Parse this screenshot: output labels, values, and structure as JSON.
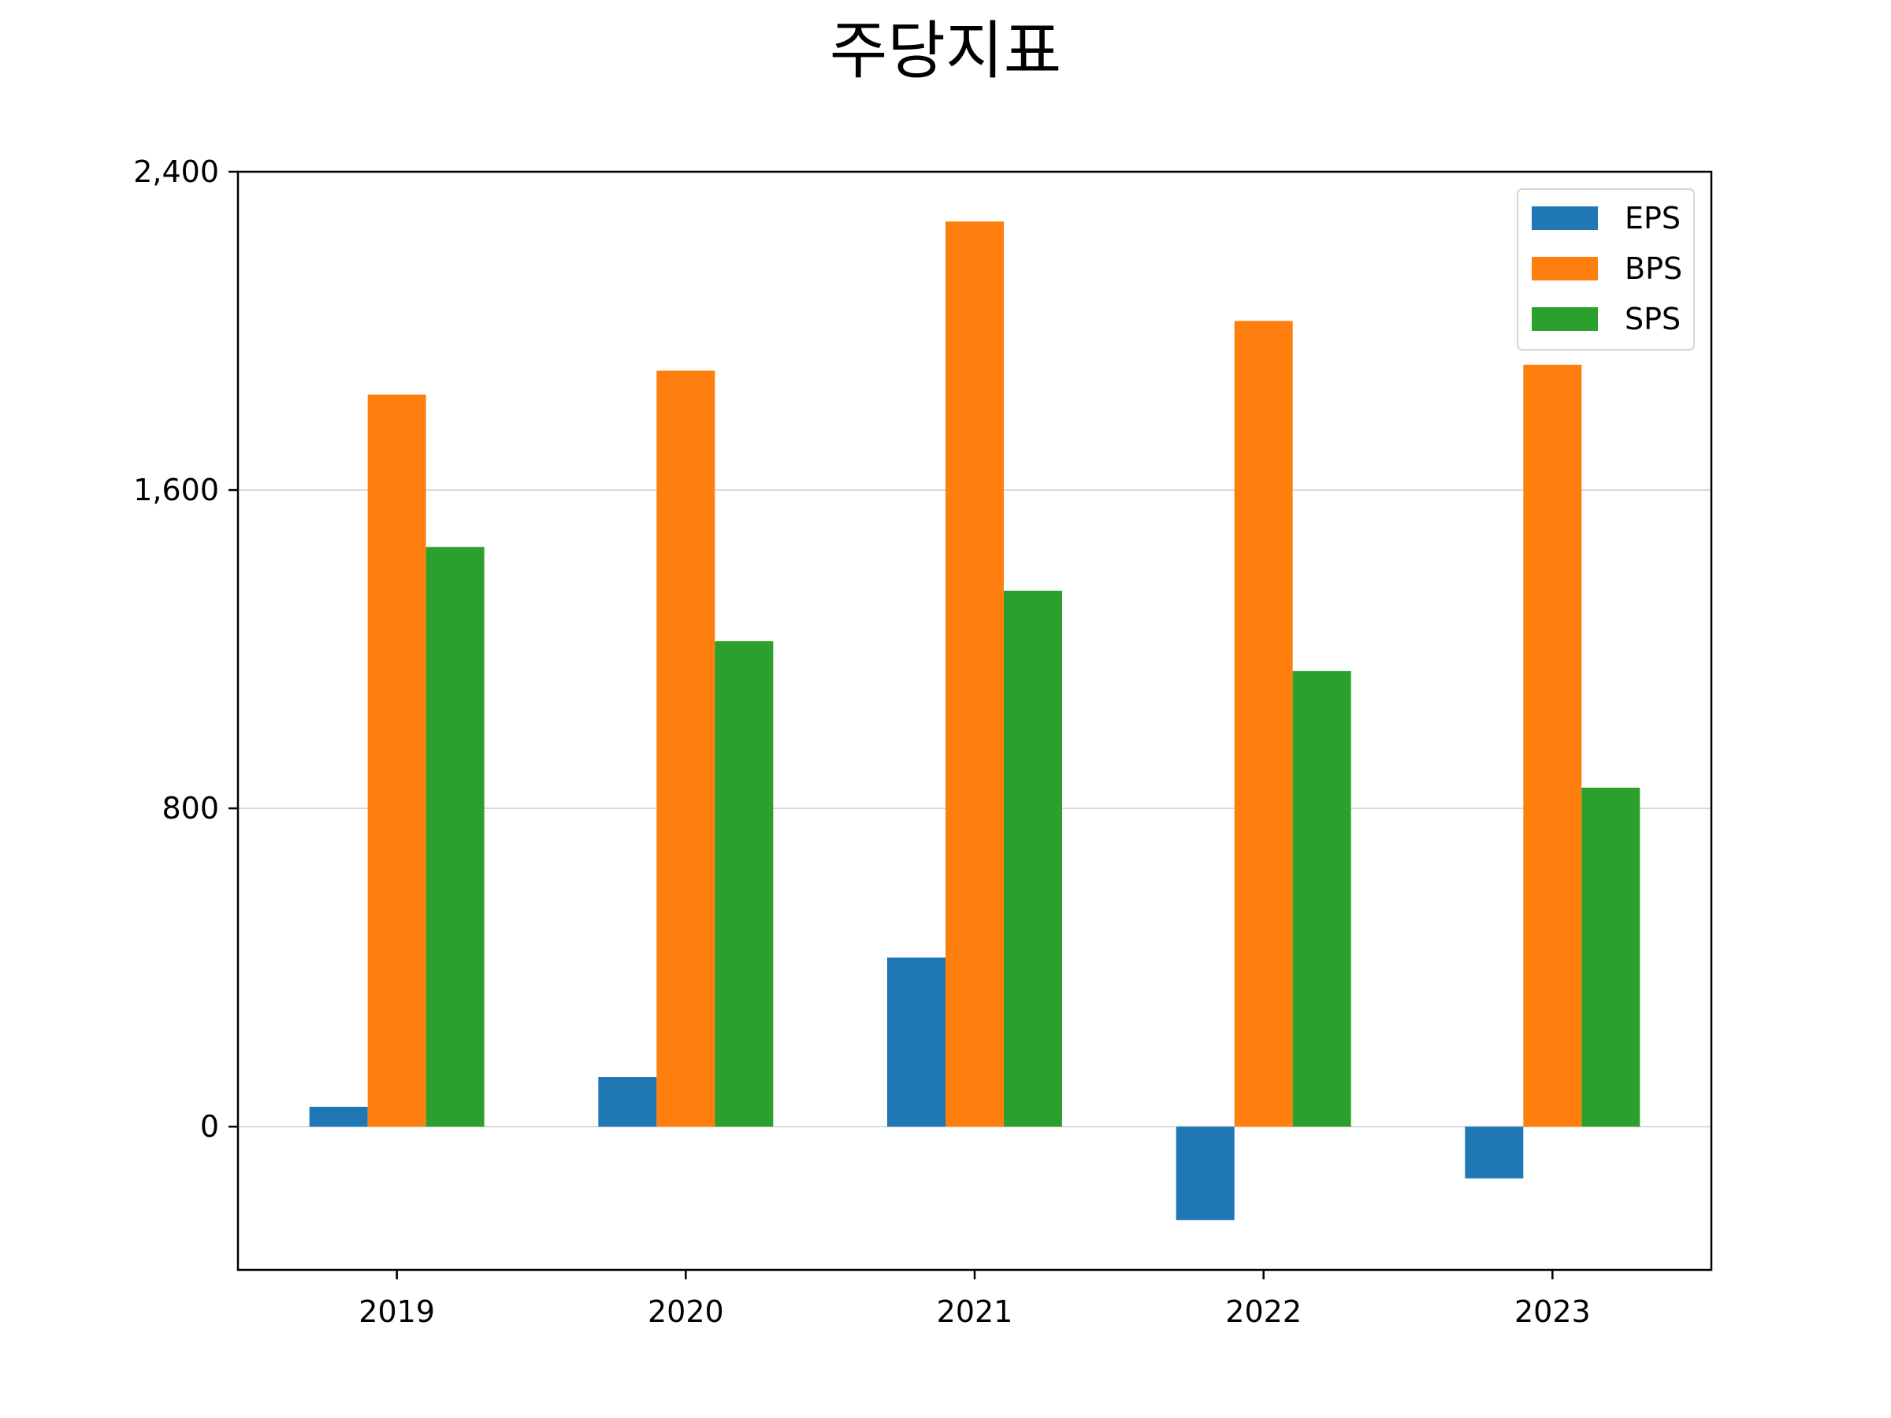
{
  "chart_data": {
    "type": "bar",
    "title": "주당지표",
    "xlabel": "",
    "ylabel": "",
    "categories": [
      "2019",
      "2020",
      "2021",
      "2022",
      "2023"
    ],
    "series": [
      {
        "name": "EPS",
        "color": "#1f77b4",
        "values": [
          50,
          125,
          425,
          -235,
          -130
        ]
      },
      {
        "name": "BPS",
        "color": "#ff7f0e",
        "values": [
          1840,
          1900,
          2275,
          2025,
          1915
        ]
      },
      {
        "name": "SPS",
        "color": "#2ca02c",
        "values": [
          1457,
          1220,
          1347,
          1145,
          852
        ]
      }
    ],
    "ylim": [
      -360,
      2400
    ],
    "yticks": [
      0,
      800,
      1600,
      2400
    ],
    "ytick_labels": [
      "0",
      "800",
      "1,600",
      "2,400"
    ],
    "grid": "y",
    "legend_position": "upper right"
  }
}
